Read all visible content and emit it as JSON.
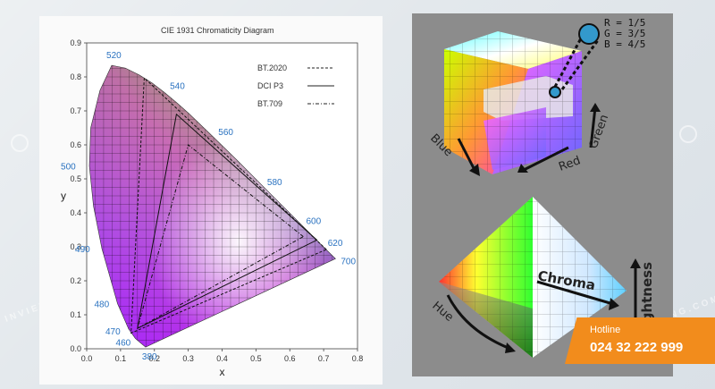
{
  "chart_data": {
    "type": "scatter",
    "title": "CIE 1931 Chromaticity Diagram",
    "xlabel": "x",
    "ylabel": "y",
    "xlim": [
      0.0,
      0.8
    ],
    "ylim": [
      0.0,
      0.9
    ],
    "x_ticks": [
      "0.0",
      "0.1",
      "0.2",
      "0.3",
      "0.4",
      "0.5",
      "0.6",
      "0.7",
      "0.8"
    ],
    "y_ticks": [
      "0.0",
      "0.1",
      "0.2",
      "0.3",
      "0.4",
      "0.5",
      "0.6",
      "0.7",
      "0.8",
      "0.9"
    ],
    "grid": true,
    "legend_position": "top-right",
    "spectral_locus_labels": [
      {
        "label": "380",
        "x": 0.174,
        "y": 0.005
      },
      {
        "label": "460",
        "x": 0.144,
        "y": 0.03
      },
      {
        "label": "470",
        "x": 0.124,
        "y": 0.058
      },
      {
        "label": "480",
        "x": 0.091,
        "y": 0.133
      },
      {
        "label": "490",
        "x": 0.045,
        "y": 0.295
      },
      {
        "label": "500",
        "x": 0.008,
        "y": 0.538
      },
      {
        "label": "520",
        "x": 0.074,
        "y": 0.834
      },
      {
        "label": "540",
        "x": 0.23,
        "y": 0.754
      },
      {
        "label": "560",
        "x": 0.373,
        "y": 0.624
      },
      {
        "label": "580",
        "x": 0.512,
        "y": 0.487
      },
      {
        "label": "600",
        "x": 0.627,
        "y": 0.372
      },
      {
        "label": "620",
        "x": 0.691,
        "y": 0.308
      },
      {
        "label": "700",
        "x": 0.735,
        "y": 0.265
      }
    ],
    "series": [
      {
        "name": "BT.2020",
        "style": "dashed",
        "points": [
          [
            0.708,
            0.292
          ],
          [
            0.17,
            0.797
          ],
          [
            0.131,
            0.046
          ]
        ]
      },
      {
        "name": "DCI P3",
        "style": "solid",
        "points": [
          [
            0.68,
            0.32
          ],
          [
            0.265,
            0.69
          ],
          [
            0.15,
            0.06
          ]
        ]
      },
      {
        "name": "BT.709",
        "style": "dashdot",
        "points": [
          [
            0.64,
            0.33
          ],
          [
            0.3,
            0.6
          ],
          [
            0.15,
            0.06
          ]
        ]
      }
    ]
  },
  "rgb_cube": {
    "r_label": "R = 1/5",
    "g_label": "G = 3/5",
    "b_label": "B = 4/5",
    "axis_blue": "Blue",
    "axis_red": "Red",
    "axis_green": "Green",
    "sample_color": "#3399cc"
  },
  "hsl_cone": {
    "hue_label": "Hue",
    "chroma_label": "Chroma",
    "lightness_label": "Lightness"
  },
  "watermark": {
    "text": "INVIETDUNG.COM"
  },
  "hotline": {
    "label": "Hotline",
    "number": "024 32 222 999",
    "color": "#f28c1c"
  }
}
